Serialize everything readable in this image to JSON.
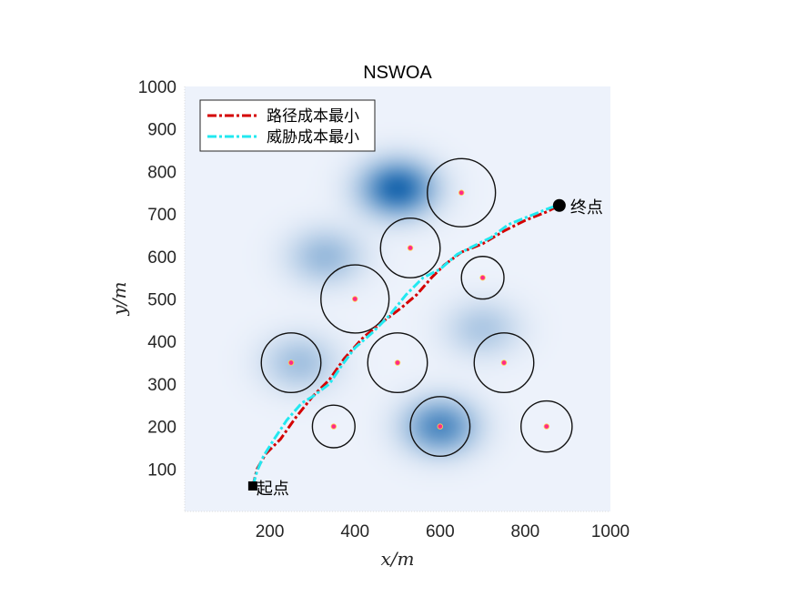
{
  "chart_data": {
    "type": "line",
    "title": "NSWOA",
    "xlabel": "x/m",
    "ylabel": "y/m",
    "xlim": [
      0,
      1000
    ],
    "ylim": [
      0,
      1000
    ],
    "xticks": [
      "200",
      "400",
      "600",
      "800",
      "1000"
    ],
    "yticks": [
      "100",
      "200",
      "300",
      "400",
      "500",
      "600",
      "700",
      "800",
      "900",
      "1000"
    ],
    "legend_position": "top-left",
    "threat_field": {
      "description_colors": {
        "low": "#edf2fb",
        "high": "#1f6ab0"
      },
      "sources": [
        {
          "x": 500,
          "y": 760,
          "strength": 1.0
        },
        {
          "x": 600,
          "y": 200,
          "strength": 0.75
        },
        {
          "x": 330,
          "y": 600,
          "strength": 0.4
        },
        {
          "x": 270,
          "y": 350,
          "strength": 0.35
        },
        {
          "x": 700,
          "y": 430,
          "strength": 0.3
        }
      ]
    },
    "obstacles": [
      {
        "x": 650,
        "y": 750,
        "r": 80
      },
      {
        "x": 530,
        "y": 620,
        "r": 70
      },
      {
        "x": 700,
        "y": 550,
        "r": 50
      },
      {
        "x": 400,
        "y": 500,
        "r": 80
      },
      {
        "x": 250,
        "y": 350,
        "r": 70
      },
      {
        "x": 500,
        "y": 350,
        "r": 70
      },
      {
        "x": 750,
        "y": 350,
        "r": 70
      },
      {
        "x": 350,
        "y": 200,
        "r": 50
      },
      {
        "x": 600,
        "y": 200,
        "r": 70
      },
      {
        "x": 850,
        "y": 200,
        "r": 60
      }
    ],
    "start": {
      "x": 160,
      "y": 60,
      "label": "起点"
    },
    "end": {
      "x": 880,
      "y": 720,
      "label": "终点"
    },
    "series": [
      {
        "name": "路径成本最小",
        "color": "#d40000",
        "x": [
          160,
          170,
          190,
          225,
          260,
          300,
          340,
          375,
          420,
          470,
          510,
          545,
          580,
          610,
          650,
          700,
          750,
          800,
          850,
          880
        ],
        "y": [
          60,
          100,
          135,
          170,
          220,
          270,
          310,
          360,
          410,
          450,
          480,
          510,
          550,
          580,
          610,
          630,
          660,
          685,
          705,
          720
        ]
      },
      {
        "name": "威胁成本最小",
        "color": "#22e8f0",
        "x": [
          160,
          170,
          185,
          210,
          240,
          275,
          300,
          340,
          370,
          400,
          440,
          480,
          520,
          560,
          600,
          640,
          680,
          720,
          760,
          810,
          860,
          880
        ],
        "y": [
          60,
          95,
          130,
          170,
          215,
          255,
          270,
          300,
          345,
          385,
          420,
          460,
          510,
          550,
          570,
          605,
          625,
          645,
          675,
          695,
          715,
          720
        ]
      }
    ]
  }
}
